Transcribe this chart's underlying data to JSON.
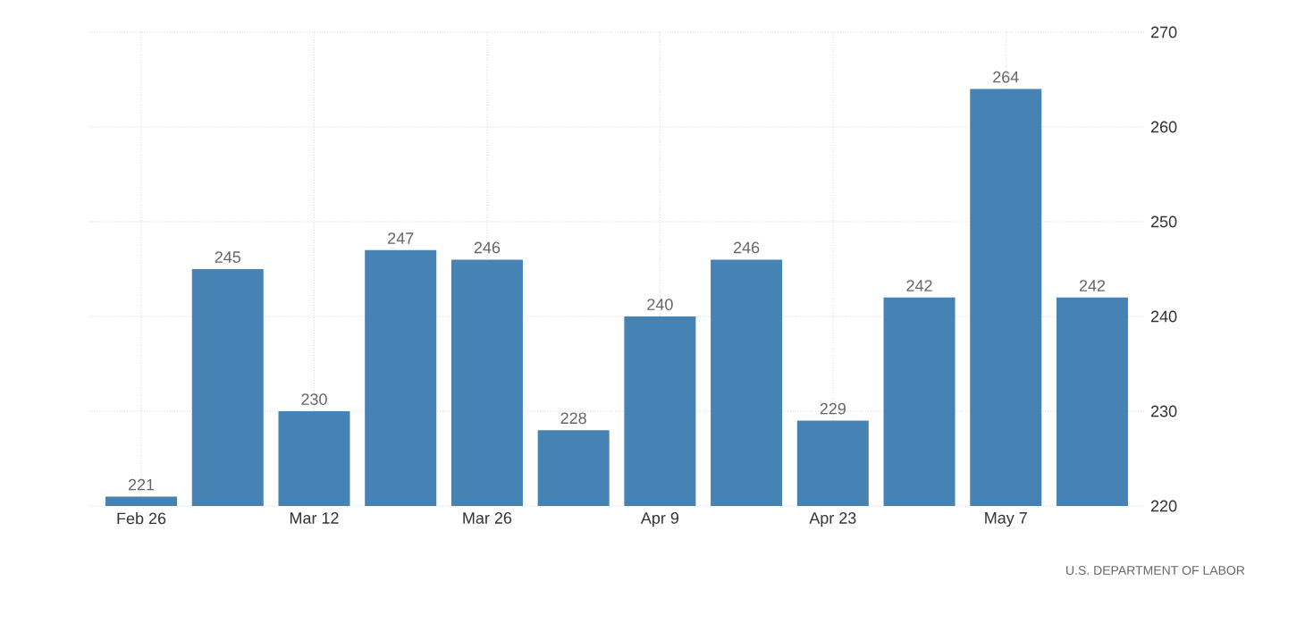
{
  "chart_data": {
    "type": "bar",
    "categories": [
      "Feb 26",
      null,
      "Mar 12",
      null,
      "Mar 26",
      null,
      "Apr 9",
      null,
      "Apr 23",
      null,
      "May 7",
      null
    ],
    "values": [
      221,
      245,
      230,
      247,
      246,
      228,
      240,
      246,
      229,
      242,
      264,
      242
    ],
    "color": "#4682b4",
    "ylim": [
      220,
      270
    ],
    "yticks": [
      220,
      230,
      240,
      250,
      260,
      270
    ],
    "grid": true,
    "data_labels": true,
    "annotations": [
      "U.S. DEPARTMENT OF LABOR"
    ]
  }
}
